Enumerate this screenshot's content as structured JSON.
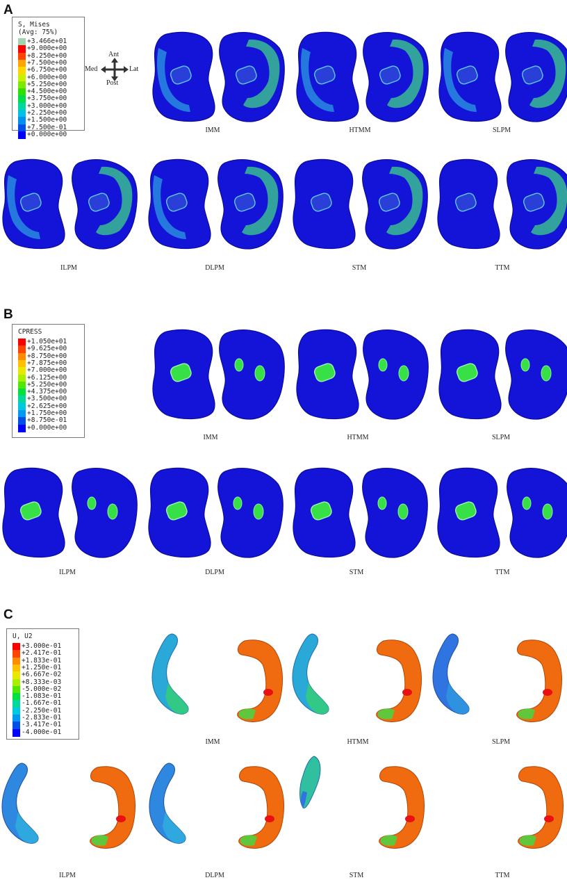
{
  "panels": [
    {
      "letter": "A",
      "legend_title": "S, Mises\n(Avg: 75%)",
      "legend_labels": [
        "+3.466e+01",
        "+9.000e+00",
        "+8.250e+00",
        "+7.500e+00",
        "+6.750e+00",
        "+6.000e+00",
        "+5.250e+00",
        "+4.500e+00",
        "+3.750e+00",
        "+3.000e+00",
        "+2.250e+00",
        "+1.500e+00",
        "+7.500e-01",
        "+0.000e+00"
      ],
      "legend_colors": [
        "#9fd4b0",
        "#ff0000",
        "#ff4400",
        "#ffa500",
        "#ffd700",
        "#c8f000",
        "#7ee800",
        "#2ee000",
        "#00dc50",
        "#00d8a0",
        "#00c0e8",
        "#0090f0",
        "#0050e8",
        "#0000ff"
      ],
      "captions": [
        "IMM",
        "HTMM",
        "SLPM",
        "ILPM",
        "DLPM",
        "STM",
        "TTM"
      ]
    },
    {
      "letter": "B",
      "legend_title": "CPRESS",
      "legend_labels": [
        "+1.050e+01",
        "+9.625e+00",
        "+8.750e+00",
        "+7.875e+00",
        "+7.000e+00",
        "+6.125e+00",
        "+5.250e+00",
        "+4.375e+00",
        "+3.500e+00",
        "+2.625e+00",
        "+1.750e+00",
        "+8.750e-01",
        "+0.000e+00"
      ],
      "legend_colors": [
        "#ff0000",
        "#ff4400",
        "#ff8c00",
        "#ffc000",
        "#e8e800",
        "#a8f000",
        "#50e800",
        "#00e040",
        "#00d8a0",
        "#00c8e0",
        "#0098f0",
        "#0050e8",
        "#0000ff"
      ],
      "captions": [
        "IMM",
        "HTMM",
        "SLPM",
        "ILPM",
        "DLPM",
        "STM",
        "TTM"
      ]
    },
    {
      "letter": "C",
      "legend_title": "U, U2",
      "legend_labels": [
        "+3.000e-01",
        "+2.417e-01",
        "+1.833e-01",
        "+1.250e-01",
        "+6.667e-02",
        "+8.333e-03",
        "-5.000e-02",
        "-1.083e-01",
        "-1.667e-01",
        "-2.250e-01",
        "-2.833e-01",
        "-3.417e-01",
        "-4.000e-01"
      ],
      "legend_colors": [
        "#ff0000",
        "#ff4400",
        "#ff8c00",
        "#ffc000",
        "#e8e800",
        "#a8f000",
        "#50e800",
        "#00e040",
        "#00d8a0",
        "#00c8e0",
        "#0098f0",
        "#0050e8",
        "#0000ff"
      ],
      "captions": [
        "IMM",
        "HTMM",
        "SLPM",
        "ILPM",
        "DLPM",
        "STM",
        "TTM"
      ]
    }
  ],
  "compass": {
    "ant": "Ant",
    "post": "Post",
    "med": "Med",
    "lat": "Lat"
  },
  "colors": {
    "model_blue": "#1414d8",
    "model_edge": "#0a0a9a",
    "stress_green": "#38e048",
    "stress_cyan": "#20c8d0",
    "menisc_orange": "#f06a10",
    "menisc_red": "#e81010",
    "menisc_blue": "#2f74e0",
    "menisc_green": "#30c860"
  }
}
